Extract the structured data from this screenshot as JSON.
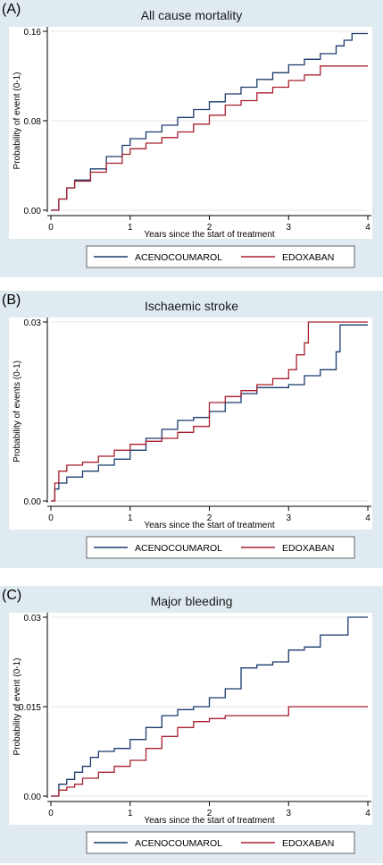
{
  "panels": [
    {
      "letter": "(A)",
      "title": "All cause mortality",
      "ylabel": "Probability of event (0-1)",
      "xlabel": "Years since the start of treatment"
    },
    {
      "letter": "(B)",
      "title": "Ischaemic stroke",
      "ylabel": "Probability of events (0-1)",
      "xlabel": "Years since the start of treatment"
    },
    {
      "letter": "(C)",
      "title": "Major bleeding",
      "ylabel": "Probability of event (0-1)",
      "xlabel": "Years since the start of treatment"
    }
  ],
  "chart_data": [
    {
      "type": "line",
      "title": "All cause mortality",
      "xlabel": "Years since the start of treatment",
      "ylabel": "Probability of event (0-1)",
      "xlim": [
        0,
        4
      ],
      "ylim": [
        0,
        0.16
      ],
      "xticks": [
        "0",
        "1",
        "2",
        "3",
        "4"
      ],
      "yticks": [
        "0.00",
        "0.08",
        "0.16"
      ],
      "ytick_values": [
        0,
        0.08,
        0.16
      ],
      "legend_position": "bottom",
      "colors": {
        "ACENOCOUMAROL": "#1a3b6e",
        "EDOXABAN": "#a8202e"
      },
      "series": [
        {
          "name": "ACENOCOUMAROL",
          "x": [
            0,
            0.1,
            0.2,
            0.3,
            0.5,
            0.7,
            0.9,
            1.0,
            1.2,
            1.4,
            1.6,
            1.8,
            2.0,
            2.2,
            2.4,
            2.6,
            2.8,
            3.0,
            3.2,
            3.4,
            3.6,
            3.7,
            3.8,
            4.0
          ],
          "y": [
            0,
            0.01,
            0.02,
            0.027,
            0.037,
            0.048,
            0.058,
            0.064,
            0.07,
            0.076,
            0.083,
            0.09,
            0.097,
            0.104,
            0.11,
            0.117,
            0.123,
            0.13,
            0.135,
            0.14,
            0.147,
            0.152,
            0.158,
            0.158
          ]
        },
        {
          "name": "EDOXABAN",
          "x": [
            0,
            0.1,
            0.2,
            0.3,
            0.5,
            0.7,
            0.9,
            1.0,
            1.2,
            1.4,
            1.6,
            1.8,
            2.0,
            2.2,
            2.4,
            2.6,
            2.8,
            3.0,
            3.2,
            3.4,
            3.6,
            4.0
          ],
          "y": [
            0,
            0.01,
            0.02,
            0.026,
            0.034,
            0.042,
            0.05,
            0.055,
            0.06,
            0.065,
            0.07,
            0.077,
            0.085,
            0.094,
            0.098,
            0.105,
            0.11,
            0.116,
            0.121,
            0.129,
            0.129,
            0.129
          ]
        }
      ]
    },
    {
      "type": "line",
      "title": "Ischaemic stroke",
      "xlabel": "Years since the start of treatment",
      "ylabel": "Probability of events (0-1)",
      "xlim": [
        0,
        4
      ],
      "ylim": [
        0,
        0.03
      ],
      "xticks": [
        "0",
        "1",
        "2",
        "3",
        "4"
      ],
      "yticks": [
        "0.00",
        "0.03"
      ],
      "ytick_values": [
        0,
        0.03
      ],
      "legend_position": "bottom",
      "colors": {
        "ACENOCOUMAROL": "#1a3b6e",
        "EDOXABAN": "#a8202e"
      },
      "series": [
        {
          "name": "ACENOCOUMAROL",
          "x": [
            0,
            0.05,
            0.1,
            0.2,
            0.4,
            0.6,
            0.8,
            1.0,
            1.2,
            1.4,
            1.6,
            1.8,
            2.0,
            2.2,
            2.4,
            2.6,
            2.8,
            3.0,
            3.2,
            3.4,
            3.55,
            3.6,
            3.65,
            4.0
          ],
          "y": [
            0,
            0.002,
            0.003,
            0.004,
            0.005,
            0.006,
            0.007,
            0.0085,
            0.0105,
            0.012,
            0.0135,
            0.014,
            0.015,
            0.0165,
            0.018,
            0.019,
            0.019,
            0.0195,
            0.021,
            0.022,
            0.022,
            0.025,
            0.0295,
            0.0295
          ]
        },
        {
          "name": "EDOXABAN",
          "x": [
            0,
            0.05,
            0.1,
            0.2,
            0.4,
            0.6,
            0.8,
            1.0,
            1.2,
            1.4,
            1.6,
            1.8,
            2.0,
            2.2,
            2.4,
            2.6,
            2.8,
            3.0,
            3.1,
            3.2,
            3.25,
            4.0
          ],
          "y": [
            0,
            0.003,
            0.005,
            0.006,
            0.0065,
            0.0075,
            0.0085,
            0.0095,
            0.01,
            0.0105,
            0.0115,
            0.0125,
            0.0165,
            0.0175,
            0.0185,
            0.0195,
            0.0205,
            0.022,
            0.0245,
            0.0265,
            0.03,
            0.03
          ]
        }
      ]
    },
    {
      "type": "line",
      "title": "Major bleeding",
      "xlabel": "Years since the start of treatment",
      "ylabel": "Probability of event (0-1)",
      "xlim": [
        0,
        4
      ],
      "ylim": [
        0,
        0.03
      ],
      "xticks": [
        "0",
        "1",
        "2",
        "3",
        "4"
      ],
      "yticks": [
        "0.00",
        "0.015",
        "0.03"
      ],
      "ytick_values": [
        0,
        0.015,
        0.03
      ],
      "legend_position": "bottom",
      "colors": {
        "ACENOCOUMAROL": "#1a3b6e",
        "EDOXABAN": "#a8202e"
      },
      "series": [
        {
          "name": "ACENOCOUMAROL",
          "x": [
            0,
            0.1,
            0.2,
            0.3,
            0.4,
            0.5,
            0.6,
            0.8,
            1.0,
            1.2,
            1.4,
            1.6,
            1.8,
            2.0,
            2.2,
            2.4,
            2.6,
            2.8,
            3.0,
            3.2,
            3.4,
            3.6,
            3.75,
            4.0
          ],
          "y": [
            0,
            0.002,
            0.0028,
            0.004,
            0.005,
            0.0065,
            0.0075,
            0.008,
            0.0095,
            0.0115,
            0.0135,
            0.0145,
            0.015,
            0.0165,
            0.018,
            0.0215,
            0.022,
            0.0225,
            0.0245,
            0.025,
            0.027,
            0.027,
            0.03,
            0.03
          ]
        },
        {
          "name": "EDOXABAN",
          "x": [
            0,
            0.1,
            0.2,
            0.3,
            0.4,
            0.6,
            0.8,
            1.0,
            1.2,
            1.4,
            1.6,
            1.8,
            2.0,
            2.2,
            2.4,
            2.6,
            2.8,
            3.0,
            3.4,
            4.0
          ],
          "y": [
            0,
            0.001,
            0.0015,
            0.002,
            0.003,
            0.004,
            0.005,
            0.006,
            0.008,
            0.01,
            0.0115,
            0.0125,
            0.013,
            0.0135,
            0.0135,
            0.0135,
            0.0135,
            0.015,
            0.015,
            0.015
          ]
        }
      ]
    }
  ]
}
